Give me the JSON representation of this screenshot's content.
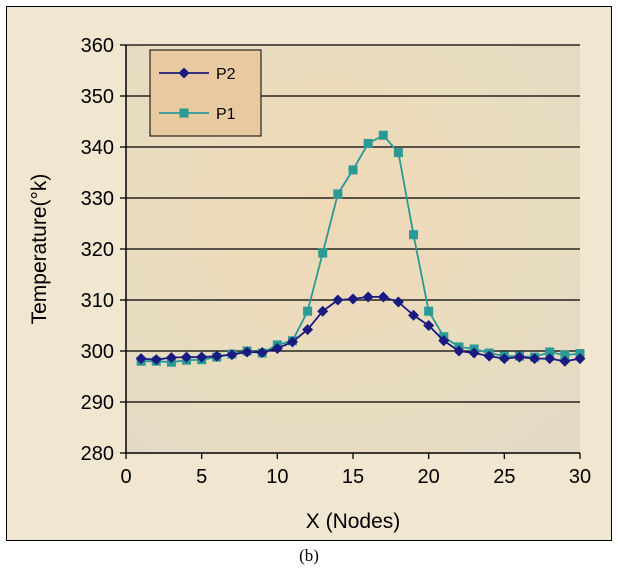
{
  "caption": "(b)",
  "chart_data": {
    "type": "line",
    "title": "",
    "xlabel": "X (Nodes)",
    "ylabel": "Temperature(°k)",
    "xlim": [
      0,
      30
    ],
    "ylim": [
      280,
      360
    ],
    "xticks": [
      0,
      5,
      10,
      15,
      20,
      25,
      30
    ],
    "yticks": [
      280,
      290,
      300,
      310,
      320,
      330,
      340,
      350,
      360
    ],
    "grid": "horizontal",
    "legend": "top-left",
    "series": [
      {
        "name": "P2",
        "color": "#1a1a80",
        "marker": "diamond",
        "x": [
          1,
          2,
          3,
          4,
          5,
          6,
          7,
          8,
          9,
          10,
          11,
          12,
          13,
          14,
          15,
          16,
          17,
          18,
          19,
          20,
          21,
          22,
          23,
          24,
          25,
          26,
          27,
          28,
          29,
          30
        ],
        "values": [
          298.5,
          298.3,
          298.7,
          298.8,
          298.8,
          299.0,
          299.3,
          299.8,
          299.7,
          300.5,
          301.8,
          304.2,
          307.8,
          310.0,
          310.2,
          310.6,
          310.6,
          309.6,
          307.0,
          305.0,
          302.0,
          300.0,
          299.6,
          299.0,
          298.5,
          298.8,
          298.5,
          298.5,
          298.0,
          298.5
        ]
      },
      {
        "name": "P1",
        "color": "#2a9a94",
        "marker": "square",
        "x": [
          1,
          2,
          3,
          4,
          5,
          6,
          7,
          8,
          9,
          10,
          11,
          12,
          13,
          14,
          15,
          16,
          17,
          18,
          19,
          20,
          21,
          22,
          23,
          24,
          25,
          26,
          27,
          28,
          29,
          30
        ],
        "values": [
          298.0,
          298.0,
          297.8,
          298.2,
          298.3,
          298.8,
          299.4,
          300.0,
          299.6,
          301.2,
          302.0,
          307.8,
          319.2,
          330.8,
          335.5,
          340.7,
          342.3,
          338.9,
          322.8,
          307.8,
          302.8,
          300.8,
          300.4,
          299.6,
          299.0,
          299.0,
          298.8,
          299.8,
          299.2,
          299.5
        ]
      }
    ]
  }
}
